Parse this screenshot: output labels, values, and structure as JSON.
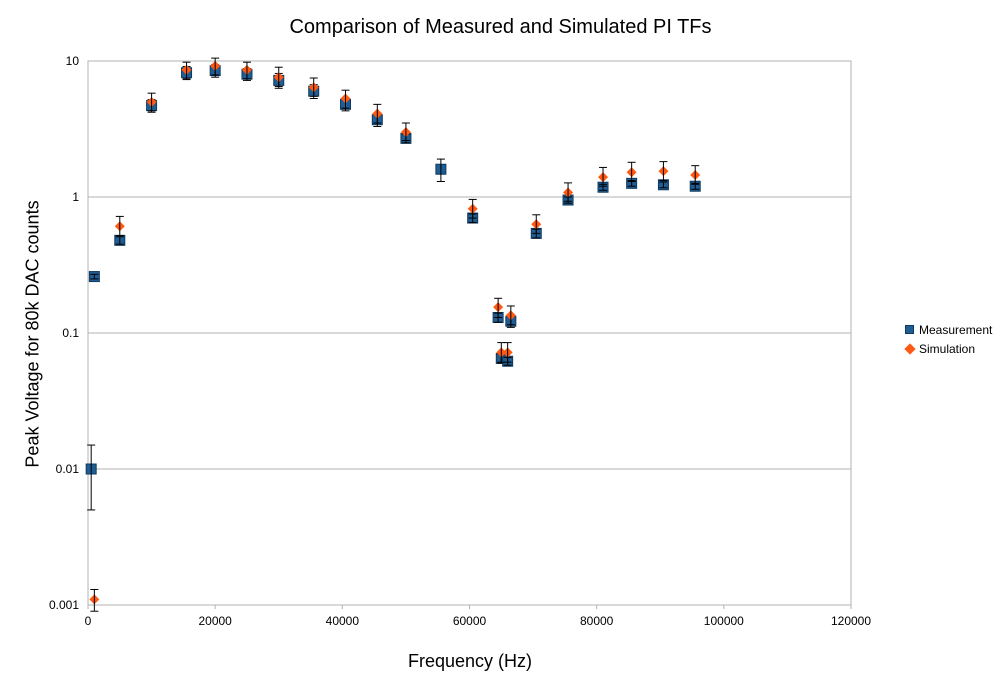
{
  "chart_data": {
    "type": "scatter",
    "title": "Comparison of Measured and Simulated PI TFs",
    "xlabel": "Frequency (Hz)",
    "ylabel": "Peak Voltage for 80k DAC counts",
    "xlim": [
      0,
      120000
    ],
    "ylim": [
      0.001,
      10
    ],
    "yscale": "log",
    "grid": "horizontal major gridlines",
    "legend_position": "right",
    "x_ticks": [
      "0",
      "20000",
      "40000",
      "60000",
      "80000",
      "100000",
      "120000"
    ],
    "y_ticks": [
      "0.001",
      "0.01",
      "0.1",
      "1",
      "10"
    ],
    "series": [
      {
        "name": "Measurement",
        "marker": "square",
        "color": "#1f5d93",
        "points": [
          {
            "x": 500,
            "y": 0.01,
            "err_low": 0.005,
            "err_high": 0.015
          },
          {
            "x": 1000,
            "y": 0.26,
            "err_low": 0.25,
            "err_high": 0.27
          },
          {
            "x": 5000,
            "y": 0.48,
            "err_low": 0.45,
            "err_high": 0.51
          },
          {
            "x": 10000,
            "y": 4.7,
            "err_low": 4.2,
            "err_high": 5.2
          },
          {
            "x": 15500,
            "y": 8.2,
            "err_low": 7.3,
            "err_high": 9.1
          },
          {
            "x": 20000,
            "y": 8.5,
            "err_low": 7.6,
            "err_high": 9.4
          },
          {
            "x": 25000,
            "y": 8.0,
            "err_low": 7.2,
            "err_high": 8.8
          },
          {
            "x": 30000,
            "y": 7.2,
            "err_low": 6.3,
            "err_high": 8.1
          },
          {
            "x": 35500,
            "y": 6.0,
            "err_low": 5.3,
            "err_high": 6.7
          },
          {
            "x": 40500,
            "y": 4.8,
            "err_low": 4.3,
            "err_high": 5.3
          },
          {
            "x": 45500,
            "y": 3.7,
            "err_low": 3.3,
            "err_high": 4.1
          },
          {
            "x": 50000,
            "y": 2.7,
            "err_low": 2.5,
            "err_high": 2.9
          },
          {
            "x": 55500,
            "y": 1.6,
            "err_low": 1.3,
            "err_high": 1.9
          },
          {
            "x": 60500,
            "y": 0.7,
            "err_low": 0.65,
            "err_high": 0.75
          },
          {
            "x": 64500,
            "y": 0.13,
            "err_low": 0.12,
            "err_high": 0.14
          },
          {
            "x": 65000,
            "y": 0.065,
            "err_low": 0.06,
            "err_high": 0.07
          },
          {
            "x": 66000,
            "y": 0.062,
            "err_low": 0.058,
            "err_high": 0.066
          },
          {
            "x": 66500,
            "y": 0.122,
            "err_low": 0.11,
            "err_high": 0.134
          },
          {
            "x": 70500,
            "y": 0.54,
            "err_low": 0.5,
            "err_high": 0.58
          },
          {
            "x": 75500,
            "y": 0.95,
            "err_low": 0.9,
            "err_high": 1.0
          },
          {
            "x": 81000,
            "y": 1.18,
            "err_low": 1.12,
            "err_high": 1.24
          },
          {
            "x": 85500,
            "y": 1.26,
            "err_low": 1.2,
            "err_high": 1.32
          },
          {
            "x": 90500,
            "y": 1.23,
            "err_low": 1.17,
            "err_high": 1.29
          },
          {
            "x": 95500,
            "y": 1.2,
            "err_low": 1.14,
            "err_high": 1.26
          }
        ]
      },
      {
        "name": "Simulation",
        "marker": "diamond",
        "color": "#ff5a14",
        "points": [
          {
            "x": 1000,
            "y": 0.0011,
            "err_low": 0.0009,
            "err_high": 0.0013
          },
          {
            "x": 5000,
            "y": 0.61,
            "err_low": 0.52,
            "err_high": 0.72
          },
          {
            "x": 10000,
            "y": 5.0,
            "err_low": 4.3,
            "err_high": 5.8
          },
          {
            "x": 15500,
            "y": 8.6,
            "err_low": 7.4,
            "err_high": 9.8
          },
          {
            "x": 20000,
            "y": 9.2,
            "err_low": 7.9,
            "err_high": 10.5
          },
          {
            "x": 25000,
            "y": 8.6,
            "err_low": 7.4,
            "err_high": 9.8
          },
          {
            "x": 30000,
            "y": 7.6,
            "err_low": 6.5,
            "err_high": 9.0
          },
          {
            "x": 35500,
            "y": 6.4,
            "err_low": 5.5,
            "err_high": 7.5
          },
          {
            "x": 40500,
            "y": 5.3,
            "err_low": 4.5,
            "err_high": 6.1
          },
          {
            "x": 45500,
            "y": 4.1,
            "err_low": 3.5,
            "err_high": 4.8
          },
          {
            "x": 50000,
            "y": 3.0,
            "err_low": 2.6,
            "err_high": 3.5
          },
          {
            "x": 60500,
            "y": 0.82,
            "err_low": 0.7,
            "err_high": 0.96
          },
          {
            "x": 64500,
            "y": 0.155,
            "err_low": 0.13,
            "err_high": 0.18
          },
          {
            "x": 65000,
            "y": 0.072,
            "err_low": 0.061,
            "err_high": 0.085
          },
          {
            "x": 66000,
            "y": 0.072,
            "err_low": 0.061,
            "err_high": 0.085
          },
          {
            "x": 66500,
            "y": 0.135,
            "err_low": 0.115,
            "err_high": 0.158
          },
          {
            "x": 70500,
            "y": 0.63,
            "err_low": 0.54,
            "err_high": 0.74
          },
          {
            "x": 75500,
            "y": 1.08,
            "err_low": 0.93,
            "err_high": 1.27
          },
          {
            "x": 81000,
            "y": 1.4,
            "err_low": 1.2,
            "err_high": 1.65
          },
          {
            "x": 85500,
            "y": 1.52,
            "err_low": 1.3,
            "err_high": 1.8
          },
          {
            "x": 90500,
            "y": 1.55,
            "err_low": 1.32,
            "err_high": 1.82
          },
          {
            "x": 95500,
            "y": 1.45,
            "err_low": 1.24,
            "err_high": 1.7
          }
        ]
      }
    ]
  }
}
